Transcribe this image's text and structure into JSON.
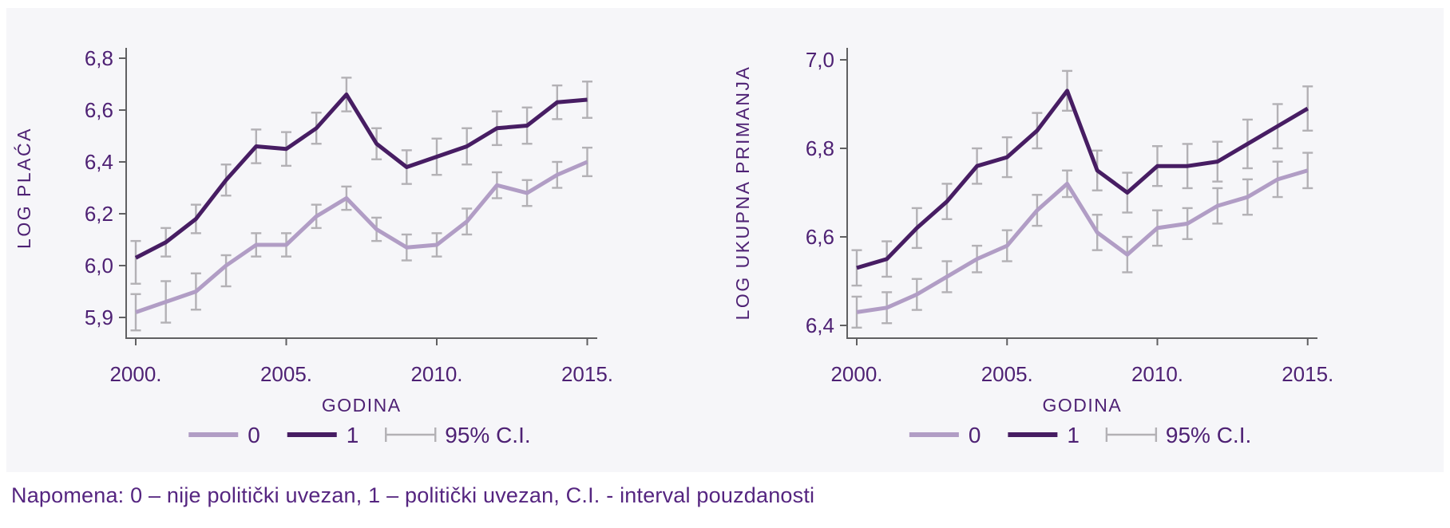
{
  "note": {
    "text": "Napomena: 0 – nije politički uvezan, 1 – politički uvezan, C.I. - interval pouzdanosti"
  },
  "colors": {
    "series0": "#b19dc5",
    "series1": "#471d63",
    "ci": "#b3b1b5",
    "axis": "#606062",
    "chart_text": "#4e2174",
    "note_text": "#552580",
    "panel_bg": "#f6f6f9",
    "page_bg": "#ffffff"
  },
  "chart_data": [
    {
      "type": "line",
      "title": "",
      "ylabel": "LOG PLAĆA",
      "xlabel": "GODINA",
      "x": [
        2000,
        2001,
        2002,
        2003,
        2004,
        2005,
        2006,
        2007,
        2008,
        2009,
        2010,
        2011,
        2012,
        2013,
        2014,
        2015
      ],
      "x_ticks": [
        {
          "year": 2000,
          "label": "2000."
        },
        {
          "year": 2005,
          "label": "2005."
        },
        {
          "year": 2010,
          "label": "2010."
        },
        {
          "year": 2015,
          "label": "2015."
        }
      ],
      "y_ticks": [
        {
          "value": 6.8,
          "label": "6,8"
        },
        {
          "value": 6.6,
          "label": "6,6"
        },
        {
          "value": 6.4,
          "label": "6,4"
        },
        {
          "value": 6.2,
          "label": "6,2"
        },
        {
          "value": 6.0,
          "label": "6,0"
        },
        {
          "value": 5.9,
          "label": "5,9"
        }
      ],
      "y_scale_note": "ticks evenly spaced as in source figure",
      "grid": false,
      "series": [
        {
          "name": "0",
          "color_key": "series0",
          "values": [
            5.91,
            5.93,
            5.95,
            6.0,
            6.08,
            6.08,
            6.19,
            6.26,
            6.14,
            6.07,
            6.08,
            6.17,
            6.31,
            6.28,
            6.35,
            6.4
          ],
          "ci_half_width": [
            0.035,
            0.04,
            0.035,
            0.04,
            0.045,
            0.045,
            0.045,
            0.045,
            0.045,
            0.05,
            0.045,
            0.05,
            0.05,
            0.05,
            0.05,
            0.055
          ]
        },
        {
          "name": "1",
          "color_key": "series1",
          "values": [
            6.03,
            6.09,
            6.18,
            6.33,
            6.46,
            6.45,
            6.53,
            6.66,
            6.47,
            6.38,
            6.42,
            6.46,
            6.53,
            6.54,
            6.63,
            6.64
          ],
          "ci_half_width": [
            0.065,
            0.055,
            0.055,
            0.06,
            0.065,
            0.065,
            0.06,
            0.065,
            0.06,
            0.065,
            0.07,
            0.07,
            0.065,
            0.07,
            0.065,
            0.07
          ]
        }
      ],
      "legend": [
        {
          "glyph": "line",
          "color_key": "series0",
          "label": "0"
        },
        {
          "glyph": "line",
          "color_key": "series1",
          "label": "1"
        },
        {
          "glyph": "errorbar",
          "color_key": "ci",
          "label": "95% C.I."
        }
      ],
      "legend_position": "bottom-center"
    },
    {
      "type": "line",
      "title": "",
      "ylabel": "LOG UKUPNA PRIMANJA",
      "xlabel": "GODINA",
      "x": [
        2000,
        2001,
        2002,
        2003,
        2004,
        2005,
        2006,
        2007,
        2008,
        2009,
        2010,
        2011,
        2012,
        2013,
        2014,
        2015
      ],
      "x_ticks": [
        {
          "year": 2000,
          "label": "2000."
        },
        {
          "year": 2005,
          "label": "2005."
        },
        {
          "year": 2010,
          "label": "2010."
        },
        {
          "year": 2015,
          "label": "2015."
        }
      ],
      "y_ticks": [
        {
          "value": 7.0,
          "label": "7,0"
        },
        {
          "value": 6.8,
          "label": "6,8"
        },
        {
          "value": 6.6,
          "label": "6,6"
        },
        {
          "value": 6.4,
          "label": "6,4"
        }
      ],
      "y_scale_note": "linear",
      "grid": false,
      "series": [
        {
          "name": "0",
          "color_key": "series0",
          "values": [
            6.43,
            6.44,
            6.47,
            6.51,
            6.55,
            6.58,
            6.66,
            6.72,
            6.61,
            6.56,
            6.62,
            6.63,
            6.67,
            6.69,
            6.73,
            6.75
          ],
          "ci_half_width": [
            0.035,
            0.035,
            0.035,
            0.035,
            0.03,
            0.035,
            0.035,
            0.03,
            0.04,
            0.04,
            0.04,
            0.035,
            0.04,
            0.04,
            0.04,
            0.04
          ]
        },
        {
          "name": "1",
          "color_key": "series1",
          "values": [
            6.53,
            6.55,
            6.62,
            6.68,
            6.76,
            6.78,
            6.84,
            6.93,
            6.75,
            6.7,
            6.76,
            6.76,
            6.77,
            6.81,
            6.85,
            6.89
          ],
          "ci_half_width": [
            0.04,
            0.04,
            0.045,
            0.04,
            0.04,
            0.045,
            0.04,
            0.045,
            0.045,
            0.045,
            0.045,
            0.05,
            0.045,
            0.055,
            0.05,
            0.05
          ]
        }
      ],
      "legend": [
        {
          "glyph": "line",
          "color_key": "series0",
          "label": "0"
        },
        {
          "glyph": "line",
          "color_key": "series1",
          "label": "1"
        },
        {
          "glyph": "errorbar",
          "color_key": "ci",
          "label": "95% C.I."
        }
      ],
      "legend_position": "bottom-center"
    }
  ]
}
